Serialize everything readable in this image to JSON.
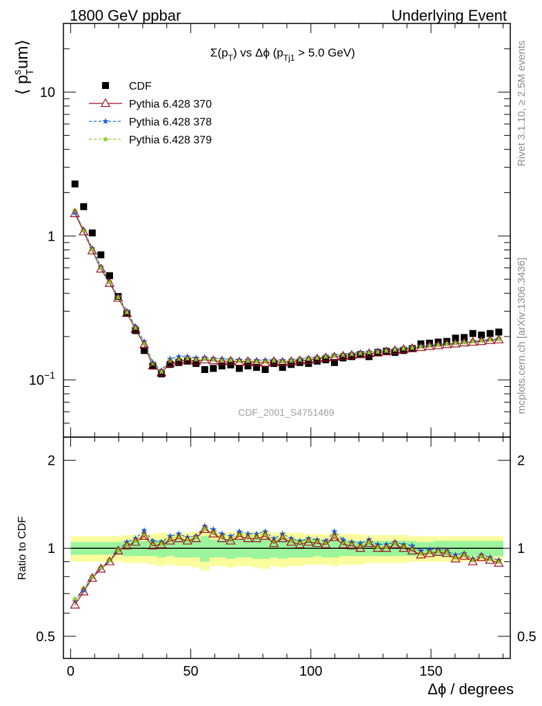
{
  "header": {
    "left": "1800 GeV ppbar",
    "right": "Underlying Event"
  },
  "side_labels": {
    "rivet": "Rivet 3.1.10, ≥ 2.5M events",
    "mcplots": "mcplots.cern.ch [arXiv:1306.3436]"
  },
  "watermark": "CDF_2001_S4751469",
  "colors": {
    "cdf": "#000000",
    "mc370": "#9a0f21",
    "mc378": "#1565d8",
    "mc379": "#8ccf2a",
    "band_inner": "#9cf59c",
    "band_outer": "#fbfc9e"
  },
  "chart_data": [
    {
      "type": "scatter",
      "panel": "main",
      "title": "Σ(p_T) vs Δφ (p_Tj1 > 5.0 GeV)",
      "title_parts": {
        "a": "Σ(p",
        "a_sub": "T",
        "b": ") vs Δϕ (p",
        "b_sub": "Tj1",
        "c": " > 5.0 GeV)"
      },
      "ylabel": "⟨ p_T^sum ⟩",
      "ylabel_parts": {
        "open": "⟨ p",
        "sup": "s",
        "sub": "T",
        "rest": "um",
        "close": "⟩"
      },
      "yscale": "log",
      "ylim": [
        0.04,
        30
      ],
      "xlim": [
        -3,
        183
      ],
      "y_ticks": [
        {
          "value": 10,
          "label": "10"
        },
        {
          "value": 1,
          "label": "1"
        },
        {
          "value": 0.1,
          "label": "10",
          "sup": "−1"
        }
      ],
      "legend": {
        "placement": "top-left",
        "entries": [
          {
            "label": "CDF",
            "marker": "square"
          },
          {
            "label": "Pythia 6.428 370",
            "marker": "triangle"
          },
          {
            "label": "Pythia 6.428 378",
            "marker": "star"
          },
          {
            "label": "Pythia 6.428 379",
            "marker": "star"
          }
        ]
      },
      "x": [
        1.8,
        5.4,
        9.0,
        12.6,
        16.2,
        19.8,
        23.4,
        27.0,
        30.6,
        34.2,
        37.8,
        41.4,
        45.0,
        48.6,
        52.2,
        55.8,
        59.4,
        63.0,
        66.6,
        70.2,
        73.8,
        77.4,
        81.0,
        84.6,
        88.2,
        91.8,
        95.4,
        99.0,
        102.6,
        106.2,
        109.8,
        113.4,
        117.0,
        120.6,
        124.2,
        127.8,
        131.4,
        135.0,
        138.6,
        142.2,
        145.8,
        149.4,
        153.0,
        156.6,
        160.2,
        163.8,
        167.4,
        171.0,
        174.6,
        178.2
      ],
      "series": [
        {
          "name": "CDF",
          "values": [
            2.3,
            1.6,
            1.05,
            0.74,
            0.53,
            0.38,
            0.29,
            0.22,
            0.16,
            0.125,
            0.11,
            0.128,
            0.132,
            0.135,
            0.13,
            0.118,
            0.12,
            0.125,
            0.127,
            0.12,
            0.125,
            0.122,
            0.118,
            0.13,
            0.122,
            0.128,
            0.132,
            0.13,
            0.135,
            0.138,
            0.132,
            0.142,
            0.145,
            0.15,
            0.145,
            0.155,
            0.158,
            0.155,
            0.16,
            0.165,
            0.178,
            0.18,
            0.183,
            0.185,
            0.195,
            0.197,
            0.21,
            0.205,
            0.21,
            0.215
          ]
        },
        {
          "name": "Pythia 6.428 370",
          "values": [
            1.43,
            1.07,
            0.79,
            0.59,
            0.47,
            0.37,
            0.29,
            0.225,
            0.175,
            0.125,
            0.112,
            0.13,
            0.135,
            0.138,
            0.135,
            0.138,
            0.136,
            0.134,
            0.135,
            0.133,
            0.134,
            0.132,
            0.131,
            0.134,
            0.132,
            0.134,
            0.136,
            0.137,
            0.14,
            0.142,
            0.144,
            0.146,
            0.148,
            0.15,
            0.152,
            0.154,
            0.157,
            0.16,
            0.163,
            0.165,
            0.168,
            0.171,
            0.173,
            0.176,
            0.178,
            0.181,
            0.183,
            0.185,
            0.188,
            0.19
          ]
        },
        {
          "name": "Pythia 6.428 378",
          "values": [
            1.45,
            1.1,
            0.82,
            0.61,
            0.48,
            0.38,
            0.3,
            0.235,
            0.185,
            0.132,
            0.116,
            0.14,
            0.145,
            0.145,
            0.142,
            0.143,
            0.141,
            0.14,
            0.139,
            0.138,
            0.138,
            0.137,
            0.137,
            0.138,
            0.137,
            0.138,
            0.14,
            0.142,
            0.144,
            0.147,
            0.149,
            0.151,
            0.153,
            0.155,
            0.157,
            0.159,
            0.161,
            0.164,
            0.167,
            0.169,
            0.172,
            0.174,
            0.176,
            0.179,
            0.181,
            0.184,
            0.186,
            0.188,
            0.191,
            0.193
          ]
        },
        {
          "name": "Pythia 6.428 379",
          "values": [
            1.5,
            1.1,
            0.81,
            0.6,
            0.48,
            0.375,
            0.295,
            0.23,
            0.18,
            0.13,
            0.114,
            0.136,
            0.14,
            0.141,
            0.139,
            0.14,
            0.138,
            0.137,
            0.137,
            0.135,
            0.136,
            0.134,
            0.134,
            0.136,
            0.134,
            0.136,
            0.138,
            0.14,
            0.142,
            0.145,
            0.147,
            0.149,
            0.151,
            0.153,
            0.155,
            0.157,
            0.159,
            0.162,
            0.165,
            0.167,
            0.17,
            0.172,
            0.175,
            0.177,
            0.18,
            0.182,
            0.185,
            0.187,
            0.19,
            0.192
          ]
        }
      ]
    },
    {
      "type": "line",
      "panel": "ratio",
      "xlabel": "Δϕ / degrees",
      "ylabel": "Ratio to CDF",
      "yscale": "log",
      "ylim": [
        0.42,
        2.4
      ],
      "xlim": [
        -3,
        183
      ],
      "x_ticks": [
        0,
        50,
        100,
        150
      ],
      "y_ticks": [
        {
          "value": 2,
          "label": "2"
        },
        {
          "value": 1,
          "label": "1"
        },
        {
          "value": 0.5,
          "label": "0.5"
        }
      ],
      "x": [
        1.8,
        5.4,
        9.0,
        12.6,
        16.2,
        19.8,
        23.4,
        27.0,
        30.6,
        34.2,
        37.8,
        41.4,
        45.0,
        48.6,
        52.2,
        55.8,
        59.4,
        63.0,
        66.6,
        70.2,
        73.8,
        77.4,
        81.0,
        84.6,
        88.2,
        91.8,
        95.4,
        99.0,
        102.6,
        106.2,
        109.8,
        113.4,
        117.0,
        120.6,
        124.2,
        127.8,
        131.4,
        135.0,
        138.6,
        142.2,
        145.8,
        149.4,
        153.0,
        156.6,
        160.2,
        163.8,
        167.4,
        171.0,
        174.6,
        178.2
      ],
      "band_inner": [
        0.05,
        0.05,
        0.05,
        0.05,
        0.05,
        0.05,
        0.06,
        0.06,
        0.06,
        0.06,
        0.07,
        0.06,
        0.07,
        0.07,
        0.07,
        0.1,
        0.07,
        0.07,
        0.08,
        0.07,
        0.07,
        0.08,
        0.08,
        0.07,
        0.08,
        0.07,
        0.07,
        0.07,
        0.06,
        0.07,
        0.07,
        0.06,
        0.06,
        0.06,
        0.06,
        0.06,
        0.06,
        0.06,
        0.06,
        0.06,
        0.05,
        0.05,
        0.06,
        0.06,
        0.06,
        0.06,
        0.06,
        0.06,
        0.06,
        0.06
      ],
      "band_outer": [
        0.1,
        0.1,
        0.1,
        0.1,
        0.1,
        0.1,
        0.11,
        0.11,
        0.11,
        0.12,
        0.13,
        0.12,
        0.13,
        0.13,
        0.14,
        0.16,
        0.13,
        0.13,
        0.14,
        0.13,
        0.13,
        0.14,
        0.15,
        0.13,
        0.14,
        0.13,
        0.13,
        0.12,
        0.12,
        0.12,
        0.13,
        0.12,
        0.12,
        0.12,
        0.11,
        0.11,
        0.11,
        0.11,
        0.11,
        0.1,
        0.1,
        0.1,
        0.1,
        0.1,
        0.1,
        0.1,
        0.1,
        0.1,
        0.1,
        0.1
      ],
      "series": [
        {
          "name": "Pythia 6.428 370",
          "values": [
            0.64,
            0.71,
            0.79,
            0.85,
            0.9,
            0.98,
            1.02,
            1.05,
            1.1,
            1.02,
            1.03,
            1.06,
            1.08,
            1.06,
            1.08,
            1.16,
            1.12,
            1.08,
            1.06,
            1.1,
            1.08,
            1.08,
            1.1,
            1.04,
            1.08,
            1.05,
            1.03,
            1.05,
            1.04,
            1.03,
            1.09,
            1.03,
            1.02,
            1.0,
            1.04,
            1.0,
            1.0,
            1.03,
            1.0,
            0.98,
            0.95,
            0.96,
            0.97,
            0.96,
            0.92,
            0.94,
            0.9,
            0.93,
            0.91,
            0.89
          ]
        },
        {
          "name": "Pythia 6.428 378",
          "values": [
            0.66,
            0.72,
            0.8,
            0.86,
            0.91,
            0.99,
            1.05,
            1.08,
            1.15,
            1.06,
            1.05,
            1.1,
            1.12,
            1.09,
            1.1,
            1.19,
            1.16,
            1.12,
            1.1,
            1.14,
            1.12,
            1.12,
            1.14,
            1.08,
            1.12,
            1.08,
            1.06,
            1.08,
            1.07,
            1.06,
            1.14,
            1.07,
            1.05,
            1.04,
            1.07,
            1.03,
            1.03,
            1.05,
            1.03,
            1.02,
            0.98,
            0.99,
            0.99,
            0.98,
            0.95,
            0.96,
            0.92,
            0.95,
            0.93,
            0.91
          ]
        },
        {
          "name": "Pythia 6.428 379",
          "values": [
            0.67,
            0.73,
            0.8,
            0.86,
            0.91,
            0.99,
            1.03,
            1.06,
            1.12,
            1.04,
            1.04,
            1.08,
            1.1,
            1.07,
            1.09,
            1.17,
            1.14,
            1.1,
            1.08,
            1.12,
            1.1,
            1.1,
            1.12,
            1.06,
            1.1,
            1.06,
            1.05,
            1.07,
            1.06,
            1.05,
            1.11,
            1.05,
            1.04,
            1.02,
            1.05,
            1.01,
            1.01,
            1.04,
            1.02,
            1.0,
            0.96,
            0.97,
            0.98,
            0.97,
            0.93,
            0.95,
            0.91,
            0.94,
            0.92,
            0.9
          ]
        }
      ]
    }
  ]
}
